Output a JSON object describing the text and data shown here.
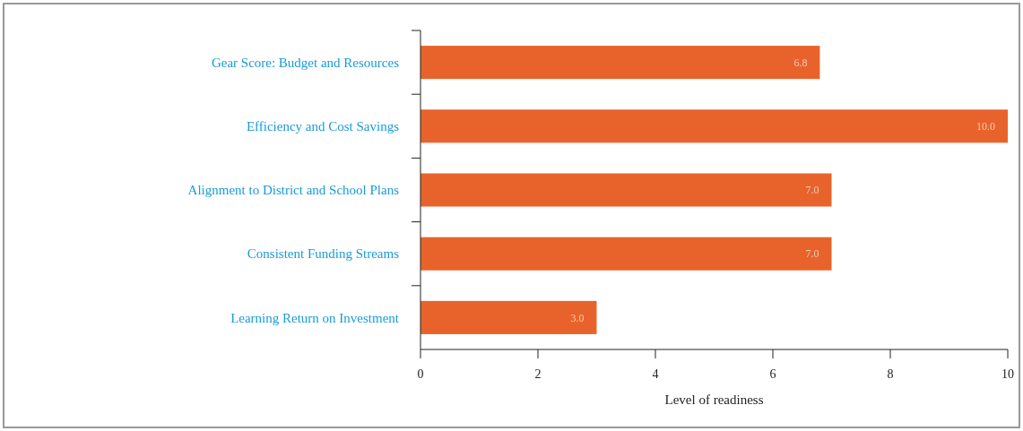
{
  "chart_data": {
    "type": "bar",
    "orientation": "horizontal",
    "xlabel": "Level of readiness",
    "categories": [
      "Gear Score: Budget and Resources",
      "Efficiency and Cost Savings",
      "Alignment to District and School Plans",
      "Consistent Funding Streams",
      "Learning Return on Investment"
    ],
    "values": [
      6.8,
      10.0,
      7.0,
      7.0,
      3.0
    ],
    "value_labels": [
      "6.8",
      "10.0",
      "7.0",
      "7.0",
      "3.0"
    ],
    "color": "#e8632b",
    "xlim": [
      0,
      10
    ],
    "xticks": [
      0,
      2,
      4,
      6,
      8,
      10
    ],
    "grid": false
  }
}
